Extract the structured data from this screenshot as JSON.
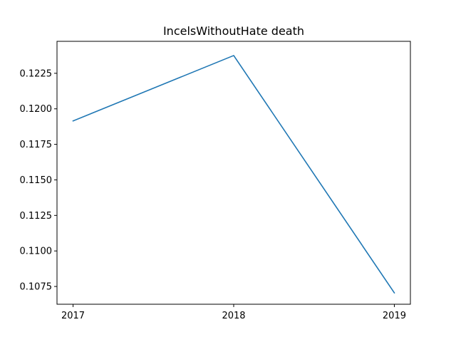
{
  "chart_data": {
    "type": "line",
    "title": "IncelsWithoutHate death",
    "xlabel": "",
    "ylabel": "",
    "x": [
      "2017",
      "2018",
      "2019"
    ],
    "series": [
      {
        "values": [
          0.11915,
          0.12375,
          0.10705
        ],
        "color": "#1f77b4"
      }
    ],
    "xlim": [
      2016.9,
      2019.1
    ],
    "ylim": [
      0.10625,
      0.12475
    ],
    "yticks": [
      "0.1075",
      "0.1100",
      "0.1125",
      "0.1150",
      "0.1175",
      "0.1200",
      "0.1225"
    ],
    "grid": false,
    "legend": "none"
  }
}
